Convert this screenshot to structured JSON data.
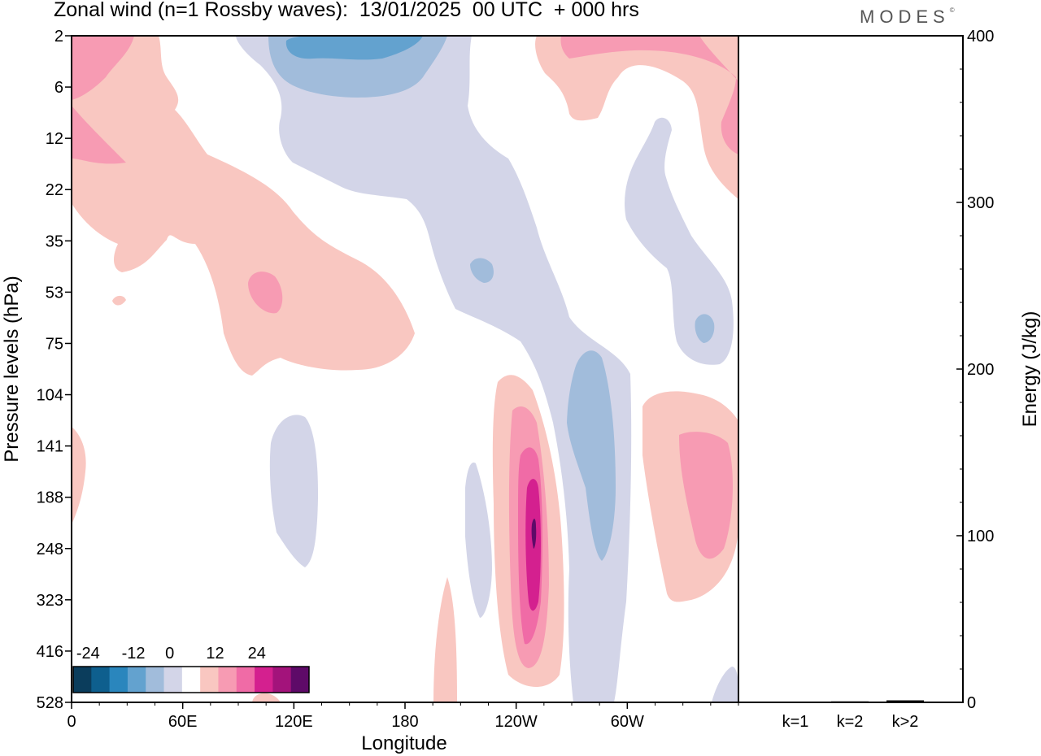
{
  "title": "Zonal wind (n=1 Rossby waves):  13/01/2025  00 UTC  + 000 hrs",
  "logo": "MODES",
  "logo_mark": "©",
  "chart_data": [
    {
      "type": "heatmap",
      "title": "Zonal wind (n=1 Rossby waves):  13/01/2025  00 UTC  + 000 hrs",
      "xlabel": "Longitude",
      "ylabel": "Pressure levels (hPa)",
      "x_ticks": [
        "0",
        "60E",
        "120E",
        "180",
        "120W",
        "60W"
      ],
      "x_tick_degrees": [
        0,
        60,
        120,
        180,
        240,
        300
      ],
      "xlim": [
        0,
        360
      ],
      "y_ticks": [
        "2",
        "6",
        "12",
        "22",
        "35",
        "53",
        "75",
        "104",
        "141",
        "188",
        "248",
        "323",
        "416",
        "528"
      ],
      "y_reversed": true,
      "colorbar": {
        "tick_labels": [
          "-24",
          "-12",
          "0",
          "12",
          "24"
        ],
        "colors": [
          "#0b3d5c",
          "#0e5f8e",
          "#2a86bd",
          "#63a2cf",
          "#a1bcdb",
          "#d3d5e8",
          "#ffffff",
          "#f9c7c1",
          "#f79bb3",
          "#f06ba6",
          "#d4208f",
          "#a3137b",
          "#5e0a68"
        ]
      },
      "regions": [
        {
          "lon": 27,
          "level": 2,
          "value": 9
        },
        {
          "lon": 95,
          "level": 53,
          "value": 9
        },
        {
          "lon": 78,
          "level": 35,
          "value": 6
        },
        {
          "lon": 160,
          "level": 3,
          "value": -12
        },
        {
          "lon": 130,
          "level": 6,
          "value": -6
        },
        {
          "lon": 215,
          "level": 53,
          "value": -9
        },
        {
          "lon": 120,
          "level": 188,
          "value": -3
        },
        {
          "lon": 225,
          "level": 188,
          "value": -3
        },
        {
          "lon": 250,
          "level": 248,
          "value": 21
        },
        {
          "lon": 250,
          "level": 248,
          "value": 15
        },
        {
          "lon": 250,
          "level": 141,
          "value": 9
        },
        {
          "lon": 275,
          "level": 141,
          "value": -9
        },
        {
          "lon": 340,
          "level": 141,
          "value": 9
        },
        {
          "lon": 325,
          "level": 75,
          "value": -9
        },
        {
          "lon": 340,
          "level": 6,
          "value": 6
        }
      ]
    },
    {
      "type": "bar",
      "categories": [
        "k=1",
        "k=2",
        "k>2"
      ],
      "values": [
        0.3,
        0.6,
        1.2
      ],
      "ylabel": "Energy (J/kg)",
      "ylim": [
        0,
        400
      ],
      "y_ticks": [
        "0",
        "100",
        "200",
        "300",
        "400"
      ],
      "y_tick_values": [
        0,
        100,
        200,
        300,
        400
      ]
    }
  ]
}
